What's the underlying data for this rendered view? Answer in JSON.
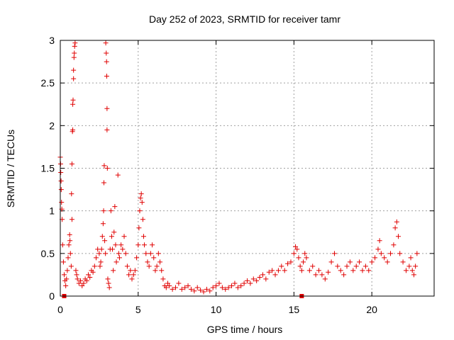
{
  "chart_data": {
    "type": "scatter",
    "title": "Day 252 of 2023, SRMTID for receiver tamr",
    "xlabel": "GPS time / hours",
    "ylabel": "SRMTID / TECUs",
    "xlim": [
      0,
      24
    ],
    "ylim": [
      0,
      3
    ],
    "xticks": [
      0,
      5,
      10,
      15,
      20
    ],
    "xtick_labels": [
      "0",
      "5",
      "10",
      "15",
      "20"
    ],
    "yticks": [
      0,
      0.5,
      1,
      1.5,
      2,
      2.5,
      3
    ],
    "ytick_labels": [
      "0",
      "0.5",
      "1",
      "1.5",
      "2",
      "2.5",
      "3"
    ],
    "grid": true,
    "marker": "+",
    "series": [
      {
        "name": "SRMTID",
        "color": "#e00000",
        "points": [
          [
            0.0,
            1.63
          ],
          [
            0.02,
            1.55
          ],
          [
            0.03,
            1.45
          ],
          [
            0.05,
            1.35
          ],
          [
            0.06,
            1.25
          ],
          [
            0.08,
            1.1
          ],
          [
            0.1,
            1.02
          ],
          [
            0.12,
            0.9
          ],
          [
            0.15,
            0.6
          ],
          [
            0.2,
            0.4
          ],
          [
            0.25,
            0.25
          ],
          [
            0.3,
            0.18
          ],
          [
            0.35,
            0.12
          ],
          [
            0.4,
            0.2
          ],
          [
            0.45,
            0.3
          ],
          [
            0.5,
            0.45
          ],
          [
            0.55,
            0.6
          ],
          [
            0.6,
            0.72
          ],
          [
            0.62,
            0.65
          ],
          [
            0.65,
            0.5
          ],
          [
            0.7,
            0.35
          ],
          [
            0.72,
            1.2
          ],
          [
            0.75,
            0.9
          ],
          [
            0.75,
            1.55
          ],
          [
            0.78,
            1.93
          ],
          [
            0.8,
            1.95
          ],
          [
            0.8,
            2.25
          ],
          [
            0.82,
            2.3
          ],
          [
            0.85,
            2.55
          ],
          [
            0.85,
            2.65
          ],
          [
            0.88,
            2.8
          ],
          [
            0.9,
            2.85
          ],
          [
            0.92,
            2.93
          ],
          [
            0.95,
            2.97
          ],
          [
            1.0,
            0.3
          ],
          [
            1.05,
            0.25
          ],
          [
            1.1,
            0.2
          ],
          [
            1.2,
            0.15
          ],
          [
            1.3,
            0.18
          ],
          [
            1.4,
            0.12
          ],
          [
            1.5,
            0.15
          ],
          [
            1.6,
            0.2
          ],
          [
            1.7,
            0.18
          ],
          [
            1.8,
            0.25
          ],
          [
            1.9,
            0.22
          ],
          [
            2.0,
            0.3
          ],
          [
            2.1,
            0.28
          ],
          [
            2.2,
            0.35
          ],
          [
            2.3,
            0.45
          ],
          [
            2.4,
            0.55
          ],
          [
            2.5,
            0.5
          ],
          [
            2.55,
            0.35
          ],
          [
            2.6,
            0.4
          ],
          [
            2.65,
            0.55
          ],
          [
            2.7,
            0.7
          ],
          [
            2.75,
            0.85
          ],
          [
            2.78,
            1.0
          ],
          [
            2.8,
            1.33
          ],
          [
            2.82,
            1.53
          ],
          [
            2.85,
            0.65
          ],
          [
            2.9,
            0.5
          ],
          [
            2.92,
            2.97
          ],
          [
            2.95,
            2.85
          ],
          [
            2.97,
            2.75
          ],
          [
            2.98,
            2.58
          ],
          [
            3.0,
            2.2
          ],
          [
            3.0,
            1.95
          ],
          [
            3.02,
            1.5
          ],
          [
            3.05,
            0.2
          ],
          [
            3.1,
            0.15
          ],
          [
            3.15,
            0.1
          ],
          [
            3.2,
            0.55
          ],
          [
            3.25,
            1.0
          ],
          [
            3.3,
            0.7
          ],
          [
            3.35,
            0.55
          ],
          [
            3.4,
            0.3
          ],
          [
            3.45,
            0.75
          ],
          [
            3.5,
            1.05
          ],
          [
            3.55,
            0.6
          ],
          [
            3.6,
            0.4
          ],
          [
            3.7,
            1.42
          ],
          [
            3.75,
            0.5
          ],
          [
            3.8,
            0.45
          ],
          [
            3.9,
            0.6
          ],
          [
            4.0,
            0.55
          ],
          [
            4.1,
            0.7
          ],
          [
            4.2,
            0.5
          ],
          [
            4.3,
            0.35
          ],
          [
            4.4,
            0.25
          ],
          [
            4.5,
            0.3
          ],
          [
            4.6,
            0.2
          ],
          [
            4.7,
            0.25
          ],
          [
            4.8,
            0.3
          ],
          [
            4.9,
            0.45
          ],
          [
            5.0,
            0.6
          ],
          [
            5.05,
            0.8
          ],
          [
            5.1,
            1.0
          ],
          [
            5.15,
            1.15
          ],
          [
            5.2,
            1.2
          ],
          [
            5.25,
            1.1
          ],
          [
            5.3,
            0.9
          ],
          [
            5.35,
            0.7
          ],
          [
            5.4,
            0.6
          ],
          [
            5.5,
            0.5
          ],
          [
            5.6,
            0.4
          ],
          [
            5.7,
            0.35
          ],
          [
            5.8,
            0.5
          ],
          [
            5.9,
            0.6
          ],
          [
            6.0,
            0.45
          ],
          [
            6.1,
            0.3
          ],
          [
            6.2,
            0.35
          ],
          [
            6.3,
            0.5
          ],
          [
            6.4,
            0.4
          ],
          [
            6.5,
            0.3
          ],
          [
            6.6,
            0.2
          ],
          [
            6.7,
            0.12
          ],
          [
            6.8,
            0.1
          ],
          [
            6.9,
            0.15
          ],
          [
            7.0,
            0.12
          ],
          [
            7.2,
            0.08
          ],
          [
            7.4,
            0.1
          ],
          [
            7.6,
            0.15
          ],
          [
            7.8,
            0.08
          ],
          [
            8.0,
            0.1
          ],
          [
            8.2,
            0.12
          ],
          [
            8.4,
            0.08
          ],
          [
            8.6,
            0.06
          ],
          [
            8.8,
            0.1
          ],
          [
            9.0,
            0.07
          ],
          [
            9.2,
            0.05
          ],
          [
            9.4,
            0.08
          ],
          [
            9.6,
            0.06
          ],
          [
            9.8,
            0.1
          ],
          [
            10.0,
            0.12
          ],
          [
            10.2,
            0.15
          ],
          [
            10.4,
            0.1
          ],
          [
            10.6,
            0.08
          ],
          [
            10.8,
            0.1
          ],
          [
            11.0,
            0.12
          ],
          [
            11.2,
            0.15
          ],
          [
            11.4,
            0.1
          ],
          [
            11.6,
            0.12
          ],
          [
            11.8,
            0.15
          ],
          [
            12.0,
            0.18
          ],
          [
            12.2,
            0.15
          ],
          [
            12.4,
            0.2
          ],
          [
            12.6,
            0.18
          ],
          [
            12.8,
            0.22
          ],
          [
            13.0,
            0.25
          ],
          [
            13.2,
            0.2
          ],
          [
            13.4,
            0.28
          ],
          [
            13.6,
            0.3
          ],
          [
            13.8,
            0.25
          ],
          [
            14.0,
            0.3
          ],
          [
            14.2,
            0.35
          ],
          [
            14.4,
            0.3
          ],
          [
            14.6,
            0.38
          ],
          [
            14.8,
            0.4
          ],
          [
            15.0,
            0.5
          ],
          [
            15.1,
            0.58
          ],
          [
            15.2,
            0.55
          ],
          [
            15.3,
            0.45
          ],
          [
            15.4,
            0.35
          ],
          [
            15.5,
            0.3
          ],
          [
            15.6,
            0.4
          ],
          [
            15.7,
            0.5
          ],
          [
            15.8,
            0.45
          ],
          [
            16.0,
            0.3
          ],
          [
            16.2,
            0.35
          ],
          [
            16.4,
            0.25
          ],
          [
            16.6,
            0.3
          ],
          [
            16.8,
            0.25
          ],
          [
            17.0,
            0.2
          ],
          [
            17.2,
            0.28
          ],
          [
            17.4,
            0.4
          ],
          [
            17.6,
            0.5
          ],
          [
            17.8,
            0.35
          ],
          [
            18.0,
            0.3
          ],
          [
            18.2,
            0.25
          ],
          [
            18.4,
            0.35
          ],
          [
            18.6,
            0.4
          ],
          [
            18.8,
            0.3
          ],
          [
            19.0,
            0.35
          ],
          [
            19.2,
            0.4
          ],
          [
            19.4,
            0.3
          ],
          [
            19.6,
            0.35
          ],
          [
            19.8,
            0.3
          ],
          [
            20.0,
            0.4
          ],
          [
            20.2,
            0.45
          ],
          [
            20.4,
            0.55
          ],
          [
            20.5,
            0.65
          ],
          [
            20.6,
            0.5
          ],
          [
            20.8,
            0.45
          ],
          [
            21.0,
            0.4
          ],
          [
            21.2,
            0.5
          ],
          [
            21.4,
            0.6
          ],
          [
            21.5,
            0.8
          ],
          [
            21.6,
            0.87
          ],
          [
            21.7,
            0.7
          ],
          [
            21.8,
            0.5
          ],
          [
            22.0,
            0.4
          ],
          [
            22.2,
            0.3
          ],
          [
            22.4,
            0.35
          ],
          [
            22.5,
            0.45
          ],
          [
            22.6,
            0.3
          ],
          [
            22.7,
            0.25
          ],
          [
            22.8,
            0.35
          ],
          [
            22.9,
            0.5
          ]
        ]
      }
    ],
    "gap_markers_x": [
      0.25,
      15.5
    ]
  }
}
